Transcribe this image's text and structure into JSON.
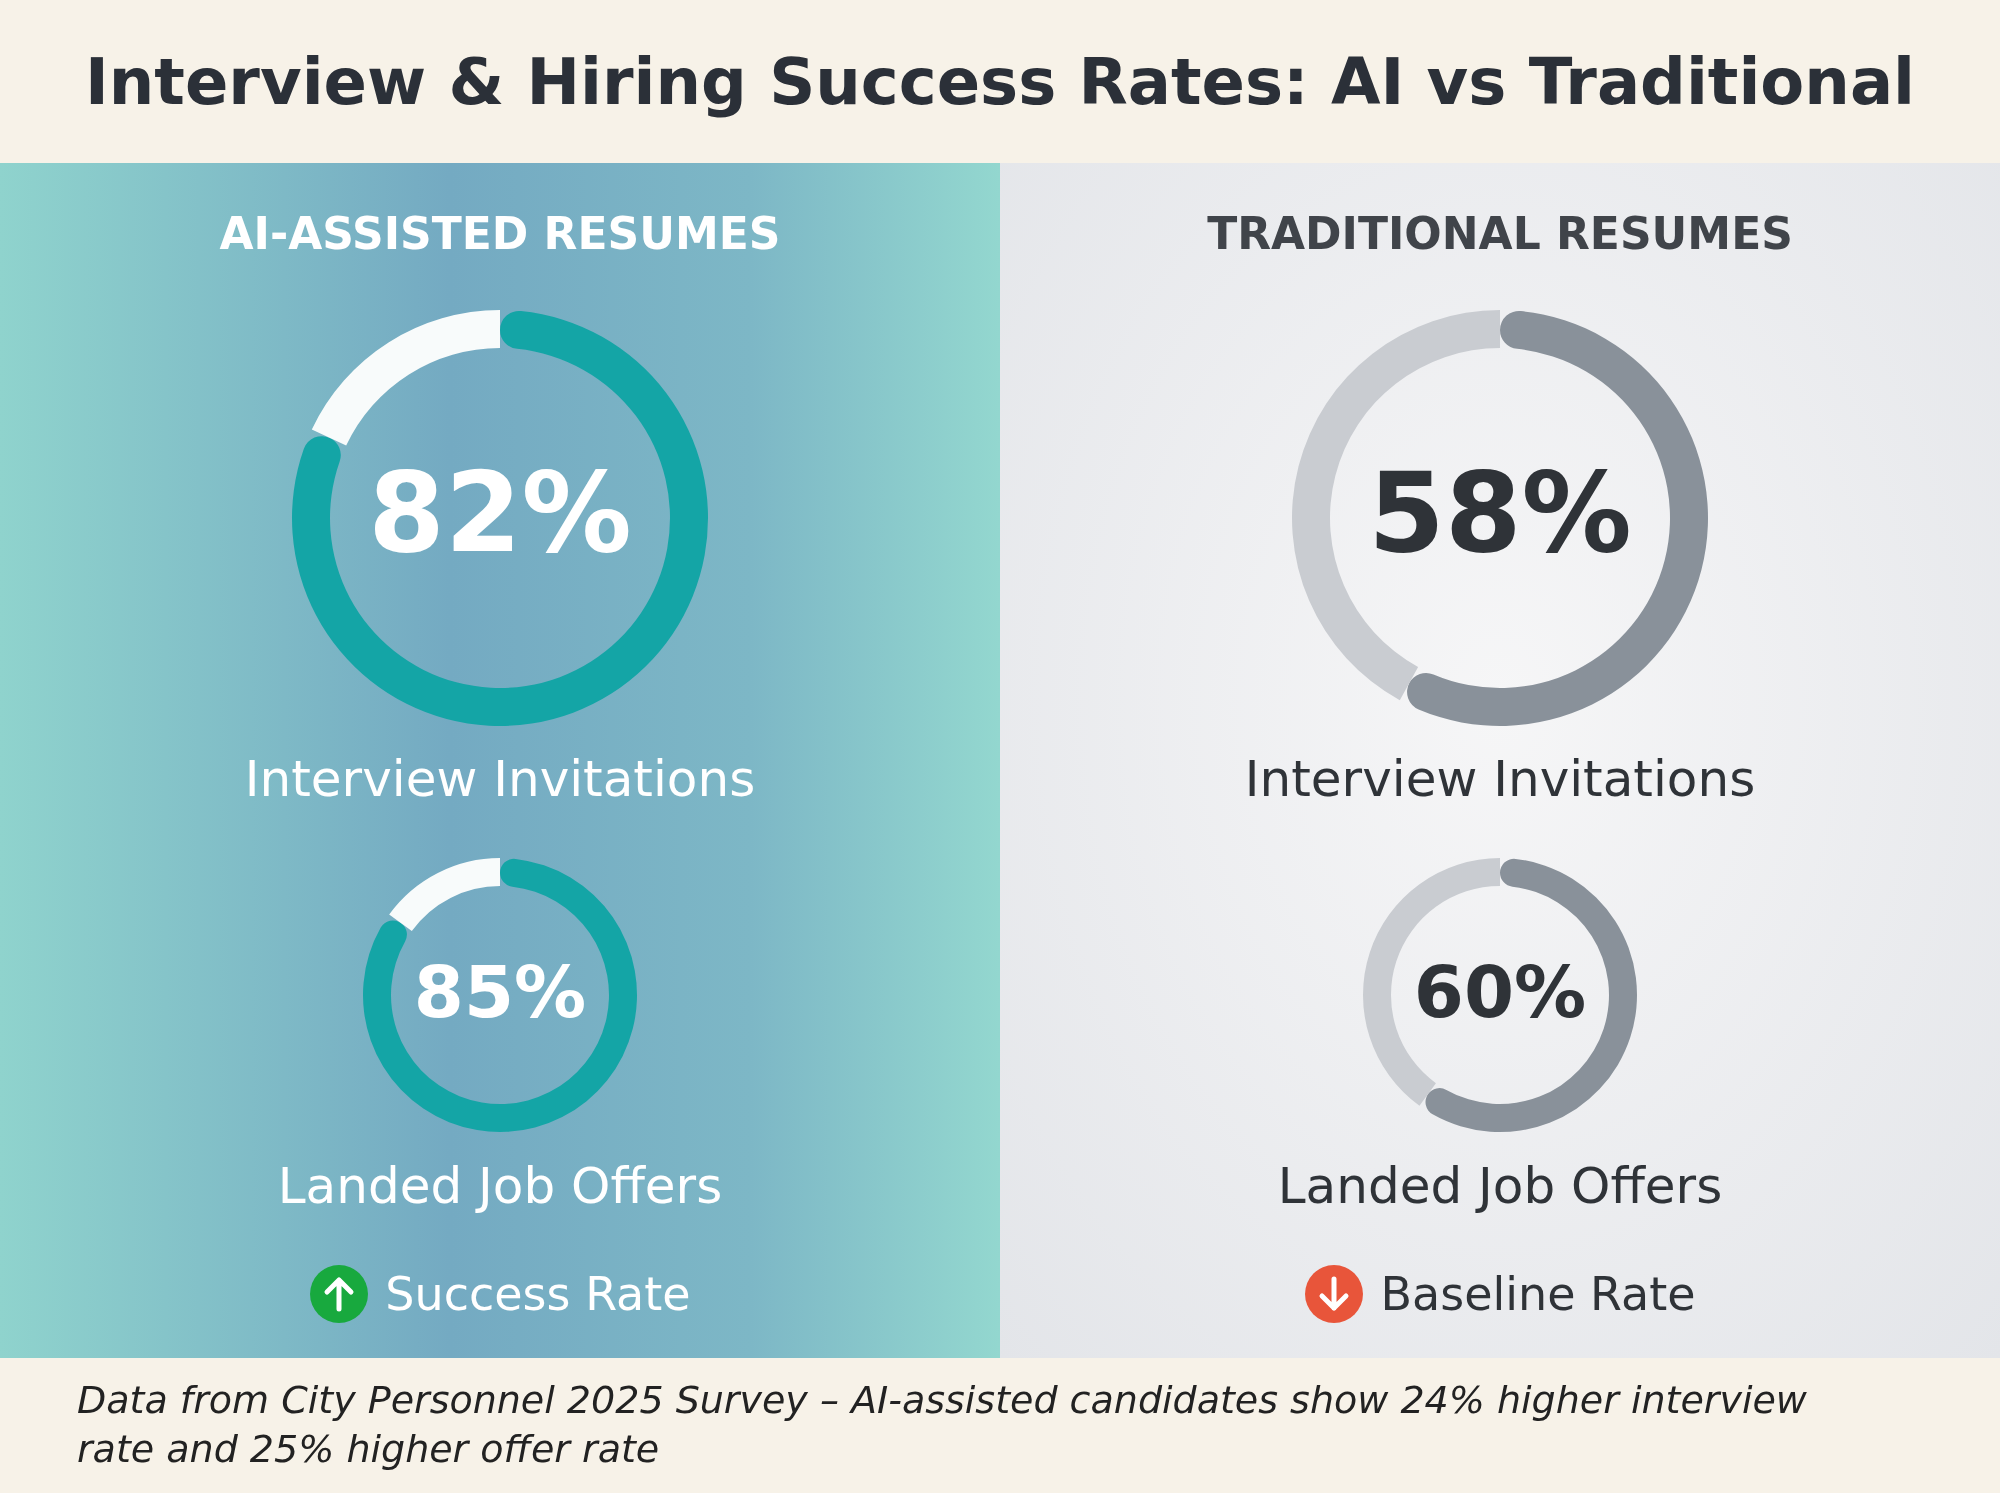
{
  "chart_data": [
    {
      "type": "donut",
      "title": "Interview & Hiring Success Rates: AI vs Traditional",
      "subtitle": "AI-ASSISTED RESUMES",
      "categories": [
        "Interview Invitations",
        null
      ],
      "values": [
        82,
        18
      ],
      "colors": [
        "#14a5a6",
        "#f8fbfb"
      ],
      "value_labels": [
        "82%",
        null
      ],
      "annotations": [
        "Data from City Personnel 2025 Survey – AI-assisted candidates show 24% higher interview rate and 25% higher offer rate"
      ]
    },
    {
      "type": "donut",
      "categories": [
        "Landed Job Offers",
        null
      ],
      "values": [
        85,
        15
      ],
      "colors": [
        "#14a5a6",
        "#f8fbfb"
      ],
      "value_labels": [
        "85%",
        null
      ],
      "annotations": [
        "Success Rate"
      ]
    },
    {
      "type": "donut",
      "subtitle": "TRADITIONAL RESUMES",
      "categories": [
        "Interview Invitations",
        null
      ],
      "values": [
        58,
        42
      ],
      "colors": [
        "#89919a",
        "#c9ccd1"
      ],
      "value_labels": [
        "58%",
        null
      ]
    },
    {
      "type": "donut",
      "categories": [
        "Landed Job Offers",
        null
      ],
      "values": [
        60,
        40
      ],
      "colors": [
        "#89919a",
        "#c9ccd1"
      ],
      "value_labels": [
        "60%",
        null
      ],
      "annotations": [
        "Baseline Rate"
      ]
    }
  ]
}
